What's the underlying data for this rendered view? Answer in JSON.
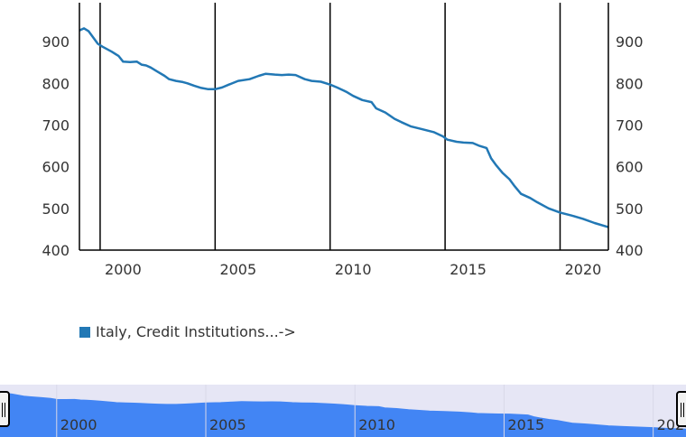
{
  "colors": {
    "series": "#2278b5",
    "navigator_fill": "#4285f4",
    "navigator_bg": "#e6e6f5",
    "axis": "#000000",
    "text": "#333333"
  },
  "legend": {
    "label": "Italy, Credit Institutions...->"
  },
  "navigator": {
    "tick_labels": [
      "2000",
      "2005",
      "2010",
      "2015",
      "2020"
    ],
    "tick_years": [
      2000,
      2005,
      2010,
      2015,
      2020
    ],
    "range": [
      1998.1,
      2021.1
    ],
    "handles": [
      "left-handle",
      "right-handle"
    ]
  },
  "chart_data": {
    "type": "line",
    "title": "",
    "xlabel": "",
    "ylabel": "",
    "xlim": [
      1998.1,
      2021.1
    ],
    "ylim": [
      400,
      1000
    ],
    "grid": "vertical lines at each January of the years 1999, 2004, 2009, 2014, 2019",
    "legend_position": "bottom-left",
    "x_ticks": [
      2000,
      2005,
      2010,
      2015,
      2020
    ],
    "x_tick_labels": [
      "2000",
      "2005",
      "2010",
      "2015",
      "2020"
    ],
    "y_ticks": [
      400,
      500,
      600,
      700,
      800,
      900
    ],
    "y_tick_labels": [
      "400",
      "500",
      "600",
      "700",
      "800",
      "900"
    ],
    "y_axis_right": true,
    "vertical_markers": [
      1999.0,
      2004.0,
      2009.0,
      2014.0,
      2019.0
    ],
    "series": [
      {
        "name": "Italy, Credit Institutions...->",
        "x": [
          1998.1,
          1998.3,
          1998.5,
          1998.9,
          1999.1,
          1999.5,
          1999.8,
          2000.0,
          2000.3,
          2000.6,
          2000.8,
          2001.0,
          2001.2,
          2001.5,
          2001.8,
          2002.0,
          2002.3,
          2002.6,
          2002.8,
          2003.1,
          2003.4,
          2003.7,
          2004.0,
          2004.3,
          2004.6,
          2005.0,
          2005.5,
          2005.9,
          2006.2,
          2006.6,
          2006.9,
          2007.2,
          2007.5,
          2007.9,
          2008.2,
          2008.6,
          2009.0,
          2009.3,
          2009.7,
          2010.0,
          2010.4,
          2010.8,
          2011.0,
          2011.4,
          2011.8,
          2012.1,
          2012.5,
          2013.0,
          2013.5,
          2013.9,
          2014.1,
          2014.5,
          2014.8,
          2015.2,
          2015.5,
          2015.8,
          2016.0,
          2016.2,
          2016.5,
          2016.8,
          2017.0,
          2017.3,
          2017.7,
          2018.0,
          2018.5,
          2019.0,
          2019.5,
          2020.0,
          2020.5,
          2021.1
        ],
        "values": [
          927,
          932,
          925,
          895,
          888,
          876,
          866,
          852,
          851,
          852,
          845,
          843,
          838,
          828,
          818,
          810,
          806,
          803,
          800,
          794,
          789,
          786,
          786,
          790,
          797,
          806,
          810,
          818,
          823,
          821,
          820,
          821,
          820,
          810,
          806,
          804,
          797,
          790,
          780,
          770,
          760,
          755,
          740,
          730,
          715,
          707,
          697,
          690,
          683,
          673,
          665,
          660,
          658,
          657,
          650,
          645,
          620,
          605,
          585,
          570,
          555,
          535,
          525,
          515,
          500,
          490,
          483,
          475,
          465,
          455
        ]
      }
    ]
  }
}
